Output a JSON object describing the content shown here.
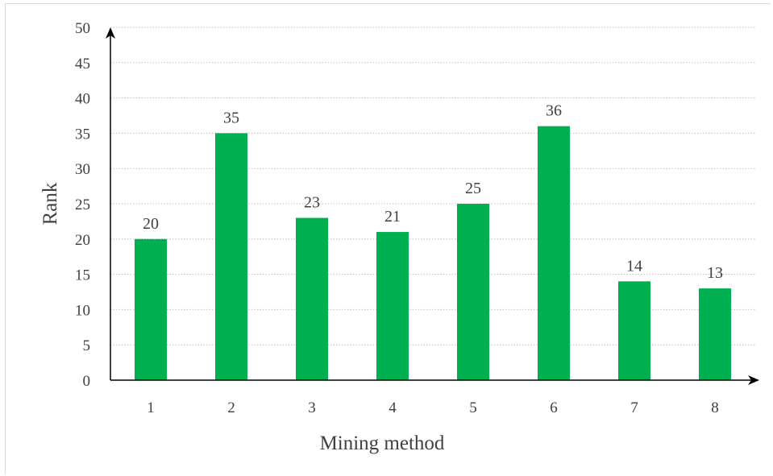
{
  "chart_data": {
    "type": "bar",
    "title": "",
    "xlabel": "Mining method",
    "ylabel": "Rank",
    "categories": [
      "1",
      "2",
      "3",
      "4",
      "5",
      "6",
      "7",
      "8"
    ],
    "values": [
      20,
      35,
      23,
      21,
      25,
      36,
      14,
      13
    ],
    "ylim": [
      0,
      50
    ],
    "yticks": [
      0,
      5,
      10,
      15,
      20,
      25,
      30,
      35,
      40,
      45,
      50
    ],
    "grid": "horizontal dotted",
    "legend": "none",
    "data_labels": true,
    "bar_color": "#00b050"
  }
}
